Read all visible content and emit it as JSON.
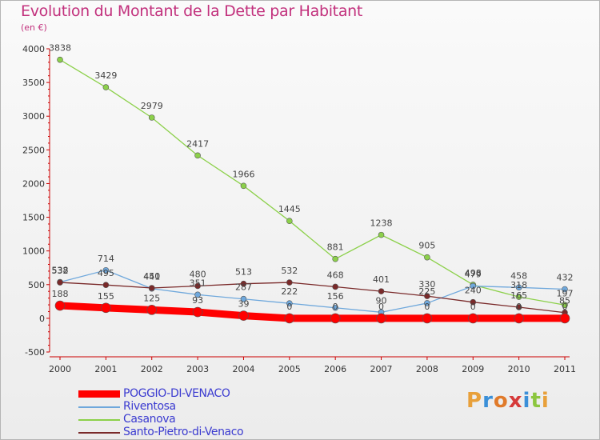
{
  "title": "Evolution du Montant de la Dette par Habitant",
  "subtitle": "(en €)",
  "brand": [
    "P",
    "r",
    "o",
    "x",
    "i",
    "t",
    "i"
  ],
  "brand_colors": [
    "#e8a03a",
    "#3a8fd8",
    "#e07a2a",
    "#d63a3a",
    "#3a8fd8",
    "#8cc63f",
    "#e8a03a"
  ],
  "colors": {
    "POGGIO-DI-VENACO": "#ff0000",
    "Riventosa": "#6fa8dc",
    "Casanova": "#8cd04a",
    "Santo-Pietro-di-Venaco": "#7a2a2a",
    "label_text": "#444444",
    "legend_text": "#3b3bd0",
    "title": "#c2317d"
  },
  "chart_data": {
    "type": "line",
    "title": "Evolution du Montant de la Dette par Habitant",
    "subtitle": "(en €)",
    "categories": [
      "2000",
      "2001",
      "2002",
      "2003",
      "2004",
      "2005",
      "2006",
      "2007",
      "2008",
      "2009",
      "2010",
      "2011"
    ],
    "ylim": [
      -500,
      4000
    ],
    "yticks": [
      -500,
      0,
      500,
      1000,
      1500,
      2000,
      2500,
      3000,
      3500,
      4000
    ],
    "grid": false,
    "legend_position": "bottom-left",
    "series": [
      {
        "name": "POGGIO-DI-VENACO",
        "values": [
          188,
          155,
          125,
          93,
          39,
          0,
          0,
          0,
          0,
          0,
          0,
          0
        ],
        "labels": [
          "188",
          "155",
          "125",
          "93",
          "39",
          "0",
          "0",
          "0",
          "0",
          "0",
          "0",
          "0"
        ]
      },
      {
        "name": "Riventosa",
        "values": [
          538,
          714,
          441,
          351,
          287,
          222,
          156,
          90,
          225,
          479,
          458,
          432
        ],
        "labels": [
          "538",
          "714",
          "441",
          "351",
          "287",
          "222",
          "156",
          "90",
          "225",
          "479",
          "458",
          "432"
        ]
      },
      {
        "name": "Casanova",
        "values": [
          3838,
          3429,
          2979,
          2417,
          1966,
          1445,
          881,
          1238,
          905,
          498,
          318,
          197
        ],
        "labels": [
          "3838",
          "3429",
          "2979",
          "2417",
          "1966",
          "1445",
          "881",
          "1238",
          "905",
          "498",
          "318",
          "197"
        ]
      },
      {
        "name": "Santo-Pietro-di-Venaco",
        "values": [
          532,
          495,
          450,
          480,
          513,
          532,
          468,
          401,
          330,
          240,
          165,
          85
        ],
        "labels": [
          "532",
          "495",
          "450",
          "480",
          "513",
          "532",
          "468",
          "401",
          "330",
          "240",
          "165",
          "85"
        ]
      }
    ]
  }
}
